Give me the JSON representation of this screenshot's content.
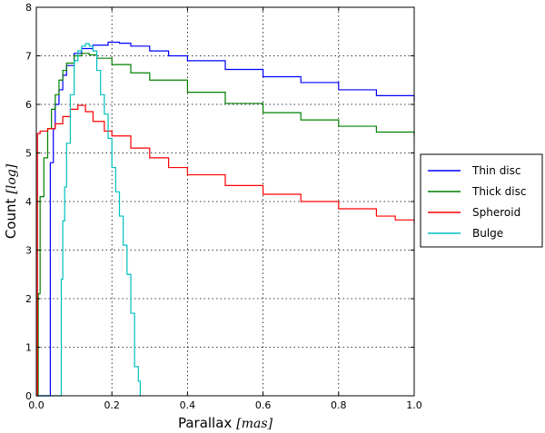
{
  "chart_data": {
    "type": "line",
    "xlabel": "Parallax",
    "xlabel_unit": "[mas]",
    "ylabel": "Count",
    "ylabel_unit": "[log]",
    "xlim": [
      0.0,
      1.0
    ],
    "ylim": [
      0,
      8
    ],
    "xticks": [
      "0.0",
      "0.2",
      "0.4",
      "0.6",
      "0.8",
      "1.0"
    ],
    "yticks": [
      "0",
      "1",
      "2",
      "3",
      "4",
      "5",
      "6",
      "7",
      "8"
    ],
    "grid": true,
    "legend_position": "right",
    "series": [
      {
        "name": "Thin disc",
        "color": "#0000ff",
        "points": [
          [
            0.0,
            0.0
          ],
          [
            0.035,
            0.0
          ],
          [
            0.037,
            4.8
          ],
          [
            0.045,
            5.5
          ],
          [
            0.05,
            6.0
          ],
          [
            0.06,
            6.3
          ],
          [
            0.07,
            6.6
          ],
          [
            0.08,
            6.8
          ],
          [
            0.1,
            7.05
          ],
          [
            0.12,
            7.15
          ],
          [
            0.15,
            7.22
          ],
          [
            0.19,
            7.28
          ],
          [
            0.22,
            7.26
          ],
          [
            0.25,
            7.2
          ],
          [
            0.3,
            7.1
          ],
          [
            0.35,
            7.0
          ],
          [
            0.4,
            6.9
          ],
          [
            0.5,
            6.72
          ],
          [
            0.6,
            6.57
          ],
          [
            0.7,
            6.45
          ],
          [
            0.8,
            6.3
          ],
          [
            0.9,
            6.18
          ],
          [
            1.0,
            6.07
          ]
        ]
      },
      {
        "name": "Thick disc",
        "color": "#008000",
        "points": [
          [
            0.0,
            0.0
          ],
          [
            0.005,
            2.1
          ],
          [
            0.01,
            4.1
          ],
          [
            0.02,
            4.9
          ],
          [
            0.03,
            5.5
          ],
          [
            0.04,
            5.9
          ],
          [
            0.05,
            6.2
          ],
          [
            0.06,
            6.5
          ],
          [
            0.07,
            6.7
          ],
          [
            0.08,
            6.85
          ],
          [
            0.1,
            7.0
          ],
          [
            0.12,
            7.05
          ],
          [
            0.14,
            7.02
          ],
          [
            0.16,
            6.95
          ],
          [
            0.2,
            6.82
          ],
          [
            0.25,
            6.65
          ],
          [
            0.3,
            6.5
          ],
          [
            0.4,
            6.25
          ],
          [
            0.5,
            6.02
          ],
          [
            0.6,
            5.83
          ],
          [
            0.7,
            5.68
          ],
          [
            0.8,
            5.55
          ],
          [
            0.9,
            5.43
          ],
          [
            1.0,
            5.35
          ]
        ]
      },
      {
        "name": "Spheroid",
        "color": "#ff0000",
        "points": [
          [
            0.0,
            0.0
          ],
          [
            0.003,
            5.4
          ],
          [
            0.01,
            5.45
          ],
          [
            0.03,
            5.5
          ],
          [
            0.05,
            5.6
          ],
          [
            0.07,
            5.75
          ],
          [
            0.09,
            5.9
          ],
          [
            0.11,
            5.98
          ],
          [
            0.13,
            5.85
          ],
          [
            0.15,
            5.65
          ],
          [
            0.18,
            5.45
          ],
          [
            0.2,
            5.35
          ],
          [
            0.25,
            5.1
          ],
          [
            0.3,
            4.9
          ],
          [
            0.35,
            4.7
          ],
          [
            0.4,
            4.55
          ],
          [
            0.5,
            4.33
          ],
          [
            0.6,
            4.15
          ],
          [
            0.7,
            4.0
          ],
          [
            0.8,
            3.85
          ],
          [
            0.9,
            3.7
          ],
          [
            0.95,
            3.62
          ],
          [
            1.0,
            3.55
          ]
        ]
      },
      {
        "name": "Bulge",
        "color": "#00bfbf",
        "points": [
          [
            0.0,
            0.0
          ],
          [
            0.065,
            0.0
          ],
          [
            0.066,
            2.4
          ],
          [
            0.07,
            3.6
          ],
          [
            0.075,
            4.3
          ],
          [
            0.08,
            5.2
          ],
          [
            0.09,
            6.2
          ],
          [
            0.1,
            6.9
          ],
          [
            0.11,
            7.1
          ],
          [
            0.12,
            7.2
          ],
          [
            0.13,
            7.25
          ],
          [
            0.14,
            7.2
          ],
          [
            0.15,
            7.1
          ],
          [
            0.16,
            6.7
          ],
          [
            0.17,
            6.2
          ],
          [
            0.18,
            5.8
          ],
          [
            0.19,
            5.3
          ],
          [
            0.2,
            4.7
          ],
          [
            0.21,
            4.2
          ],
          [
            0.22,
            3.7
          ],
          [
            0.23,
            3.1
          ],
          [
            0.24,
            2.5
          ],
          [
            0.25,
            1.7
          ],
          [
            0.26,
            0.6
          ],
          [
            0.27,
            0.3
          ],
          [
            0.275,
            0.0
          ]
        ]
      }
    ]
  }
}
